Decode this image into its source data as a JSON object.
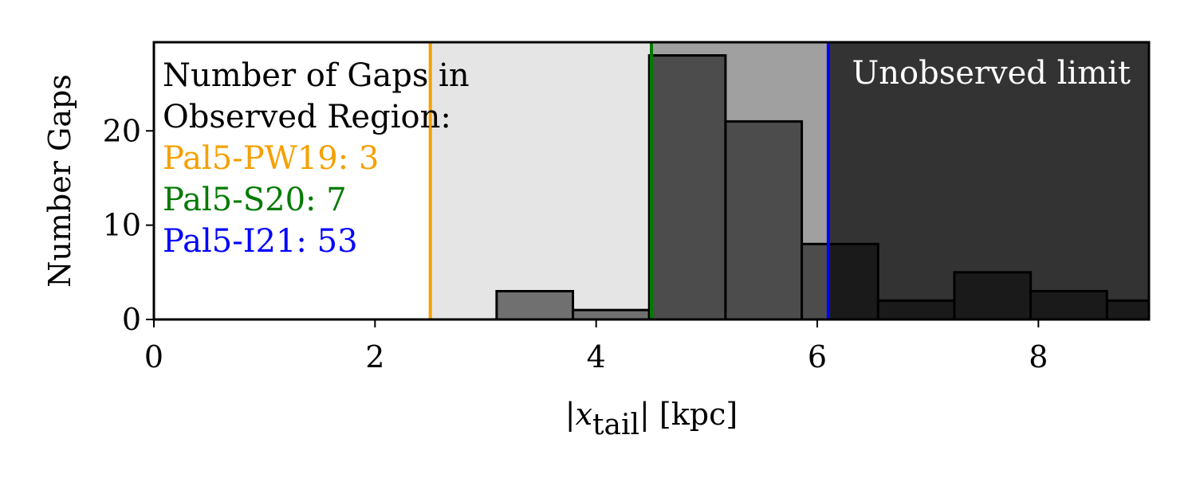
{
  "chart_data": {
    "type": "bar",
    "xlabel": "|x_tail| [kpc]",
    "xlabel_parts": {
      "pre": "|",
      "var": "x",
      "sub": "tail",
      "post": "| [kpc]"
    },
    "ylabel": "Number Gaps",
    "xlim": [
      0,
      9
    ],
    "ylim": [
      0,
      29.4
    ],
    "xticks": [
      0,
      2,
      4,
      6,
      8
    ],
    "yticks": [
      0,
      10,
      20
    ],
    "bins": [
      {
        "x0": 3.1,
        "x1": 3.79,
        "count": 3,
        "color": "#707070"
      },
      {
        "x0": 3.79,
        "x1": 4.48,
        "count": 1,
        "color": "#707070"
      },
      {
        "x0": 4.48,
        "x1": 5.17,
        "count": 28,
        "color": "#4c4c4c"
      },
      {
        "x0": 5.17,
        "x1": 5.86,
        "count": 21,
        "color": "#4c4c4c"
      },
      {
        "x0": 5.86,
        "x1": 6.1,
        "count": 8,
        "color": "#4c4c4c"
      },
      {
        "x0": 6.1,
        "x1": 6.55,
        "count": 8,
        "color": "#1a1a1a"
      },
      {
        "x0": 6.55,
        "x1": 7.24,
        "count": 2,
        "color": "#1a1a1a"
      },
      {
        "x0": 7.24,
        "x1": 7.93,
        "count": 5,
        "color": "#1a1a1a"
      },
      {
        "x0": 7.93,
        "x1": 8.62,
        "count": 3,
        "color": "#1a1a1a"
      },
      {
        "x0": 8.62,
        "x1": 9.31,
        "count": 2,
        "color": "#1a1a1a"
      }
    ],
    "regions": [
      {
        "x0": 2.5,
        "x1": 4.5,
        "color": "#e5e5e5"
      },
      {
        "x0": 4.5,
        "x1": 6.1,
        "color": "#a0a0a0"
      },
      {
        "x0": 6.1,
        "x1": 9,
        "color": "#333333"
      }
    ],
    "vlines": [
      {
        "x": 2.5,
        "color": "#f5a000"
      },
      {
        "x": 4.5,
        "color": "#007a00"
      },
      {
        "x": 6.1,
        "color": "#0000ff"
      }
    ],
    "annotation_lines": [
      {
        "text": "Number of Gaps in",
        "color": "#000000"
      },
      {
        "text": "Observed Region:",
        "color": "#000000"
      },
      {
        "text": "Pal5-PW19: 3",
        "color": "#f5a000"
      },
      {
        "text": "Pal5-S20: 7",
        "color": "#007a00"
      },
      {
        "text": "Pal5-I21: 53",
        "color": "#0000ff"
      }
    ],
    "region_label": {
      "text": "Unobserved limit",
      "color": "#ffffff"
    }
  }
}
